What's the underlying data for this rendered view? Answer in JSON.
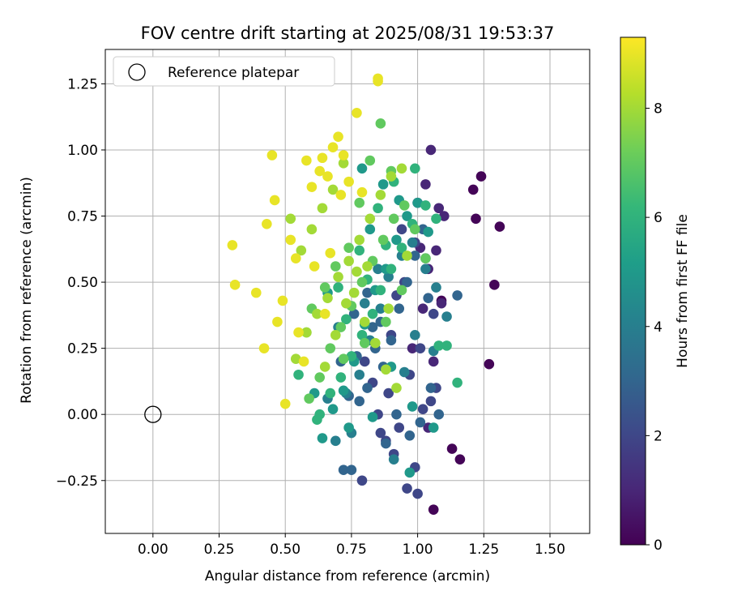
{
  "chart_data": {
    "type": "scatter",
    "title": "FOV centre drift starting at 2025/08/31 19:53:37",
    "xlabel": "Angular distance from reference (arcmin)",
    "ylabel": "Rotation from reference (arcmin)",
    "xlim": [
      -0.18,
      1.65
    ],
    "ylim": [
      -0.45,
      1.38
    ],
    "xticks": [
      0.0,
      0.25,
      0.5,
      0.75,
      1.0,
      1.25,
      1.5
    ],
    "xtick_labels": [
      "0.00",
      "0.25",
      "0.50",
      "0.75",
      "1.00",
      "1.25",
      "1.50"
    ],
    "yticks": [
      -0.25,
      0.0,
      0.25,
      0.5,
      0.75,
      1.0,
      1.25
    ],
    "ytick_labels": [
      "−0.25",
      "0.00",
      "0.25",
      "0.50",
      "0.75",
      "1.00",
      "1.25"
    ],
    "grid": true,
    "legend": {
      "position": "top-left",
      "label": "Reference platepar"
    },
    "reference_point": {
      "x": 0.0,
      "y": 0.0
    },
    "colorbar": {
      "label": "Hours from first FF file",
      "range": [
        0,
        9.3
      ],
      "ticks": [
        0,
        2,
        4,
        6,
        8
      ],
      "tick_labels": [
        "0",
        "2",
        "4",
        "6",
        "8"
      ],
      "colormap": "viridis"
    },
    "colormap_stops": [
      "#440154",
      "#482878",
      "#3e4989",
      "#31688e",
      "#26828e",
      "#1f9e89",
      "#35b779",
      "#6ece58",
      "#b5de2b",
      "#fde725"
    ],
    "series": [
      {
        "name": "hours_0.0",
        "hours": 0.1,
        "x": [
          1.06,
          1.13,
          1.16,
          1.22,
          1.27,
          1.29,
          1.31,
          1.24,
          1.21,
          1.09
        ],
        "y": [
          -0.36,
          -0.13,
          -0.17,
          0.74,
          0.19,
          0.49,
          0.71,
          0.9,
          0.85,
          0.43
        ]
      },
      {
        "name": "hours_1.0",
        "hours": 1.0,
        "x": [
          1.05,
          1.03,
          1.08,
          1.07,
          1.04,
          1.1,
          1.02,
          1.01,
          1.06,
          1.0,
          0.98,
          1.09,
          1.04
        ],
        "y": [
          1.0,
          0.87,
          0.78,
          0.62,
          0.55,
          0.75,
          0.4,
          0.63,
          0.2,
          0.8,
          0.25,
          0.42,
          -0.05
        ]
      },
      {
        "name": "hours_2.0",
        "hours": 2.0,
        "x": [
          0.94,
          0.99,
          1.03,
          1.06,
          1.01,
          0.95,
          0.92,
          0.9,
          1.07,
          0.97,
          1.02,
          0.88,
          0.93,
          1.05,
          0.99,
          1.0,
          0.96,
          0.91,
          0.86,
          0.83,
          0.8,
          0.79,
          0.85,
          0.89
        ],
        "y": [
          0.7,
          0.65,
          0.59,
          0.38,
          0.25,
          0.5,
          0.45,
          0.3,
          0.1,
          0.15,
          0.02,
          -0.1,
          -0.05,
          0.05,
          -0.2,
          -0.3,
          -0.28,
          -0.15,
          -0.07,
          0.12,
          0.2,
          -0.25,
          0.0,
          0.08
        ]
      },
      {
        "name": "hours_3.0",
        "hours": 3.0,
        "x": [
          0.72,
          0.75,
          0.78,
          0.81,
          0.84,
          0.87,
          0.9,
          0.93,
          0.96,
          0.99,
          1.02,
          1.05,
          0.74,
          0.77,
          0.83,
          0.88,
          0.92,
          0.97,
          1.01,
          0.86,
          0.81,
          0.76,
          0.71,
          1.04,
          1.08,
          1.15
        ],
        "y": [
          -0.21,
          -0.21,
          0.05,
          0.1,
          0.25,
          0.18,
          0.28,
          0.4,
          0.5,
          0.6,
          0.7,
          0.1,
          0.07,
          0.22,
          0.33,
          -0.11,
          0.0,
          -0.08,
          -0.03,
          0.35,
          0.46,
          0.38,
          0.2,
          0.44,
          0.0,
          0.45
        ]
      },
      {
        "name": "hours_4.0",
        "hours": 4.0,
        "x": [
          0.69,
          0.73,
          0.78,
          0.82,
          0.86,
          0.89,
          0.94,
          0.98,
          1.03,
          1.07,
          0.66,
          0.8,
          0.85,
          0.91,
          0.95,
          0.99,
          1.06,
          1.11,
          0.75,
          0.7
        ],
        "y": [
          -0.1,
          0.08,
          0.15,
          0.28,
          0.4,
          0.52,
          0.6,
          0.65,
          0.55,
          0.48,
          0.06,
          0.42,
          0.55,
          -0.17,
          0.16,
          0.3,
          0.24,
          0.37,
          -0.07,
          0.33
        ]
      },
      {
        "name": "hours_5.0",
        "hours": 5.0,
        "x": [
          0.64,
          0.68,
          0.72,
          0.76,
          0.8,
          0.84,
          0.88,
          0.92,
          0.96,
          1.0,
          1.04,
          0.66,
          0.79,
          0.87,
          0.93,
          0.97,
          1.06,
          0.61,
          0.74,
          0.83,
          0.98,
          0.9,
          0.82
        ],
        "y": [
          -0.09,
          0.02,
          0.09,
          0.2,
          0.34,
          0.47,
          0.55,
          0.66,
          0.75,
          0.8,
          0.69,
          0.46,
          0.93,
          0.87,
          0.81,
          -0.22,
          -0.05,
          0.08,
          -0.05,
          -0.01,
          0.03,
          0.18,
          0.7
        ]
      },
      {
        "name": "hours_6.0",
        "hours": 6.0,
        "x": [
          0.63,
          0.67,
          0.71,
          0.75,
          0.79,
          0.83,
          0.86,
          0.9,
          0.94,
          0.98,
          1.03,
          1.07,
          0.7,
          0.78,
          0.85,
          0.91,
          0.99,
          1.08,
          1.15,
          0.55,
          0.62,
          0.73,
          0.81,
          0.88,
          1.11
        ],
        "y": [
          0.0,
          0.08,
          0.14,
          0.22,
          0.3,
          0.38,
          0.47,
          0.55,
          0.63,
          0.72,
          0.79,
          0.74,
          0.48,
          0.62,
          0.78,
          0.88,
          0.93,
          0.26,
          0.12,
          0.15,
          -0.02,
          0.36,
          0.51,
          0.64,
          0.26
        ]
      },
      {
        "name": "hours_7.0",
        "hours": 7.0,
        "x": [
          0.59,
          0.63,
          0.67,
          0.71,
          0.75,
          0.79,
          0.83,
          0.87,
          0.91,
          0.95,
          0.99,
          1.03,
          0.6,
          0.65,
          0.69,
          0.74,
          0.78,
          0.82,
          0.86,
          0.9,
          0.72,
          0.8,
          0.88,
          0.58,
          0.94
        ],
        "y": [
          0.06,
          0.14,
          0.25,
          0.33,
          0.41,
          0.5,
          0.58,
          0.66,
          0.74,
          0.79,
          0.7,
          0.59,
          0.4,
          0.48,
          0.56,
          0.63,
          0.8,
          0.96,
          1.1,
          0.92,
          0.21,
          0.27,
          0.35,
          0.31,
          0.47
        ]
      },
      {
        "name": "hours_8.0",
        "hours": 8.0,
        "x": [
          0.54,
          0.58,
          0.62,
          0.66,
          0.7,
          0.74,
          0.78,
          0.82,
          0.86,
          0.9,
          0.94,
          0.56,
          0.6,
          0.64,
          0.68,
          0.72,
          0.76,
          0.8,
          0.84,
          0.88,
          0.92,
          0.96,
          0.52,
          0.65,
          0.73,
          0.81,
          0.89,
          0.69,
          0.77
        ],
        "y": [
          0.21,
          0.31,
          0.38,
          0.44,
          0.52,
          0.58,
          0.66,
          0.74,
          0.83,
          0.9,
          0.93,
          0.62,
          0.7,
          0.78,
          0.85,
          0.95,
          0.46,
          0.35,
          0.27,
          0.17,
          0.1,
          0.6,
          0.74,
          0.18,
          0.42,
          0.56,
          0.4,
          0.3,
          0.54
        ]
      },
      {
        "name": "hours_9.0",
        "hours": 9.0,
        "x": [
          0.31,
          0.3,
          0.39,
          0.42,
          0.43,
          0.46,
          0.47,
          0.49,
          0.5,
          0.52,
          0.55,
          0.57,
          0.58,
          0.6,
          0.61,
          0.63,
          0.64,
          0.66,
          0.68,
          0.7,
          0.72,
          0.74,
          0.77,
          0.79,
          0.85,
          0.85,
          0.45,
          0.54,
          0.65,
          0.67,
          0.71
        ],
        "y": [
          0.49,
          0.64,
          0.46,
          0.25,
          0.72,
          0.81,
          0.35,
          0.43,
          0.04,
          0.66,
          0.31,
          0.2,
          0.96,
          0.86,
          0.56,
          0.92,
          0.97,
          0.9,
          1.01,
          1.05,
          0.98,
          0.88,
          1.14,
          0.84,
          1.27,
          1.26,
          0.98,
          0.59,
          0.38,
          0.61,
          0.83
        ]
      }
    ]
  }
}
